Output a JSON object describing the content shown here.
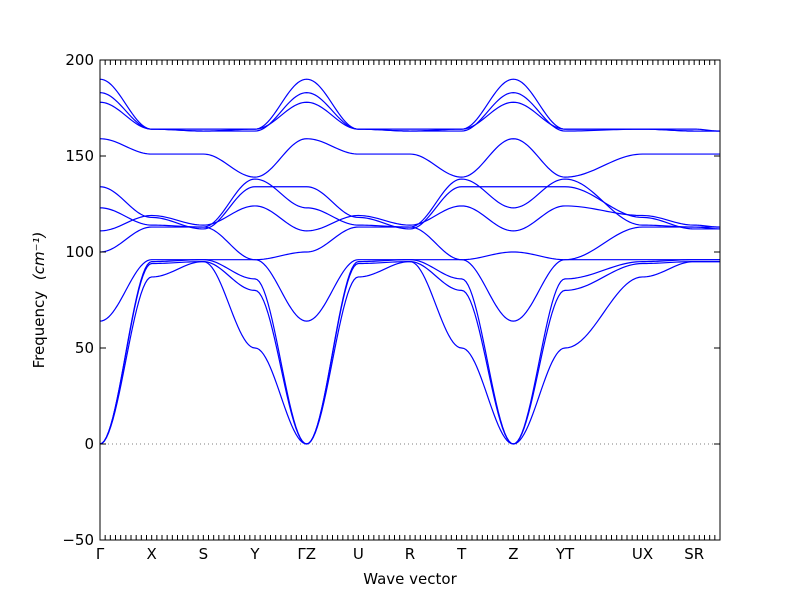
{
  "chart_data": {
    "type": "line",
    "title": "",
    "xlabel": "Wave vector",
    "ylabel": "Frequency",
    "ylabel_unit": "(cm⁻¹)",
    "ylim": [
      -50,
      200
    ],
    "yticks": [
      -50,
      0,
      50,
      100,
      150,
      200
    ],
    "ytick_labels": [
      "−50",
      "0",
      "50",
      "100",
      "150",
      "200"
    ],
    "xlim": [
      0,
      12
    ],
    "xticks": [
      {
        "x": 0,
        "label": "Γ"
      },
      {
        "x": 1,
        "label": "X"
      },
      {
        "x": 2,
        "label": "S"
      },
      {
        "x": 3,
        "label": "Y"
      },
      {
        "x": 4,
        "label": "ΓZ"
      },
      {
        "x": 5,
        "label": "U"
      },
      {
        "x": 6,
        "label": "R"
      },
      {
        "x": 7,
        "label": "T"
      },
      {
        "x": 8,
        "label": "Z"
      },
      {
        "x": 9,
        "label": "YT"
      },
      {
        "x": 10.5,
        "label": "UX"
      },
      {
        "x": 11.5,
        "label": "SR"
      }
    ],
    "zero_line": true,
    "series_color": "#0000ff",
    "series": [
      {
        "x": [
          0,
          1,
          2,
          3,
          4,
          5,
          6,
          7,
          8,
          9,
          10.5,
          11.5,
          12
        ],
        "y": [
          0,
          87,
          95,
          50,
          0,
          87,
          95,
          50,
          0,
          50,
          87,
          95,
          95
        ]
      },
      {
        "x": [
          0,
          1,
          2,
          3,
          4,
          5,
          6,
          7,
          8,
          9,
          10.5,
          11.5,
          12
        ],
        "y": [
          0,
          94,
          95,
          80,
          0,
          94,
          95,
          80,
          0,
          80,
          94,
          95,
          95
        ]
      },
      {
        "x": [
          0,
          1,
          2,
          3,
          4,
          5,
          6,
          7,
          8,
          9,
          10.5,
          11.5,
          12
        ],
        "y": [
          0,
          95,
          96,
          86,
          0,
          95,
          96,
          86,
          0,
          86,
          95,
          96,
          96
        ]
      },
      {
        "x": [
          0,
          1,
          2,
          3,
          4,
          5,
          6,
          7,
          8,
          9,
          10.5,
          11.5,
          12
        ],
        "y": [
          64,
          96,
          96,
          96,
          64,
          96,
          96,
          96,
          64,
          96,
          96,
          96,
          96
        ]
      },
      {
        "x": [
          0,
          1,
          2,
          3,
          4,
          5,
          6,
          7,
          8,
          9,
          10.5,
          11.5,
          12
        ],
        "y": [
          100,
          113,
          113,
          96,
          100,
          113,
          113,
          96,
          100,
          96,
          113,
          113,
          112
        ]
      },
      {
        "x": [
          0,
          1,
          2,
          3,
          4,
          5,
          6,
          7,
          8,
          9,
          10.5,
          11.5,
          12
        ],
        "y": [
          111,
          119,
          114,
          124,
          111,
          119,
          114,
          124,
          111,
          124,
          119,
          114,
          113
        ]
      },
      {
        "x": [
          0,
          1,
          2,
          3,
          4,
          5,
          6,
          7,
          8,
          9,
          10.5,
          11.5,
          12
        ],
        "y": [
          123,
          114,
          113,
          138,
          123,
          114,
          113,
          138,
          123,
          138,
          114,
          113,
          113
        ]
      },
      {
        "x": [
          0,
          1,
          2,
          3,
          4,
          5,
          6,
          7,
          8,
          9,
          10.5,
          11.5,
          12
        ],
        "y": [
          134,
          118,
          112,
          134,
          134,
          118,
          112,
          134,
          134,
          134,
          118,
          112,
          112
        ]
      },
      {
        "x": [
          0,
          1,
          2,
          3,
          4,
          5,
          6,
          7,
          8,
          9,
          10.5,
          11.5,
          12
        ],
        "y": [
          159,
          151,
          151,
          139,
          159,
          151,
          151,
          139,
          159,
          139,
          151,
          151,
          151
        ]
      },
      {
        "x": [
          0,
          1,
          2,
          3,
          4,
          5,
          6,
          7,
          8,
          9,
          10.5,
          11.5,
          12
        ],
        "y": [
          178,
          164,
          163,
          164,
          178,
          164,
          163,
          164,
          178,
          164,
          164,
          163,
          163
        ]
      },
      {
        "x": [
          0,
          1,
          2,
          3,
          4,
          5,
          6,
          7,
          8,
          9,
          10.5,
          11.5,
          12
        ],
        "y": [
          183,
          164,
          163,
          163,
          183,
          164,
          163,
          163,
          183,
          163,
          164,
          163,
          163
        ]
      },
      {
        "x": [
          0,
          1,
          2,
          3,
          4,
          5,
          6,
          7,
          8,
          9,
          10.5,
          11.5,
          12
        ],
        "y": [
          190,
          164,
          164,
          164,
          190,
          164,
          164,
          164,
          190,
          164,
          164,
          164,
          163
        ]
      }
    ]
  }
}
